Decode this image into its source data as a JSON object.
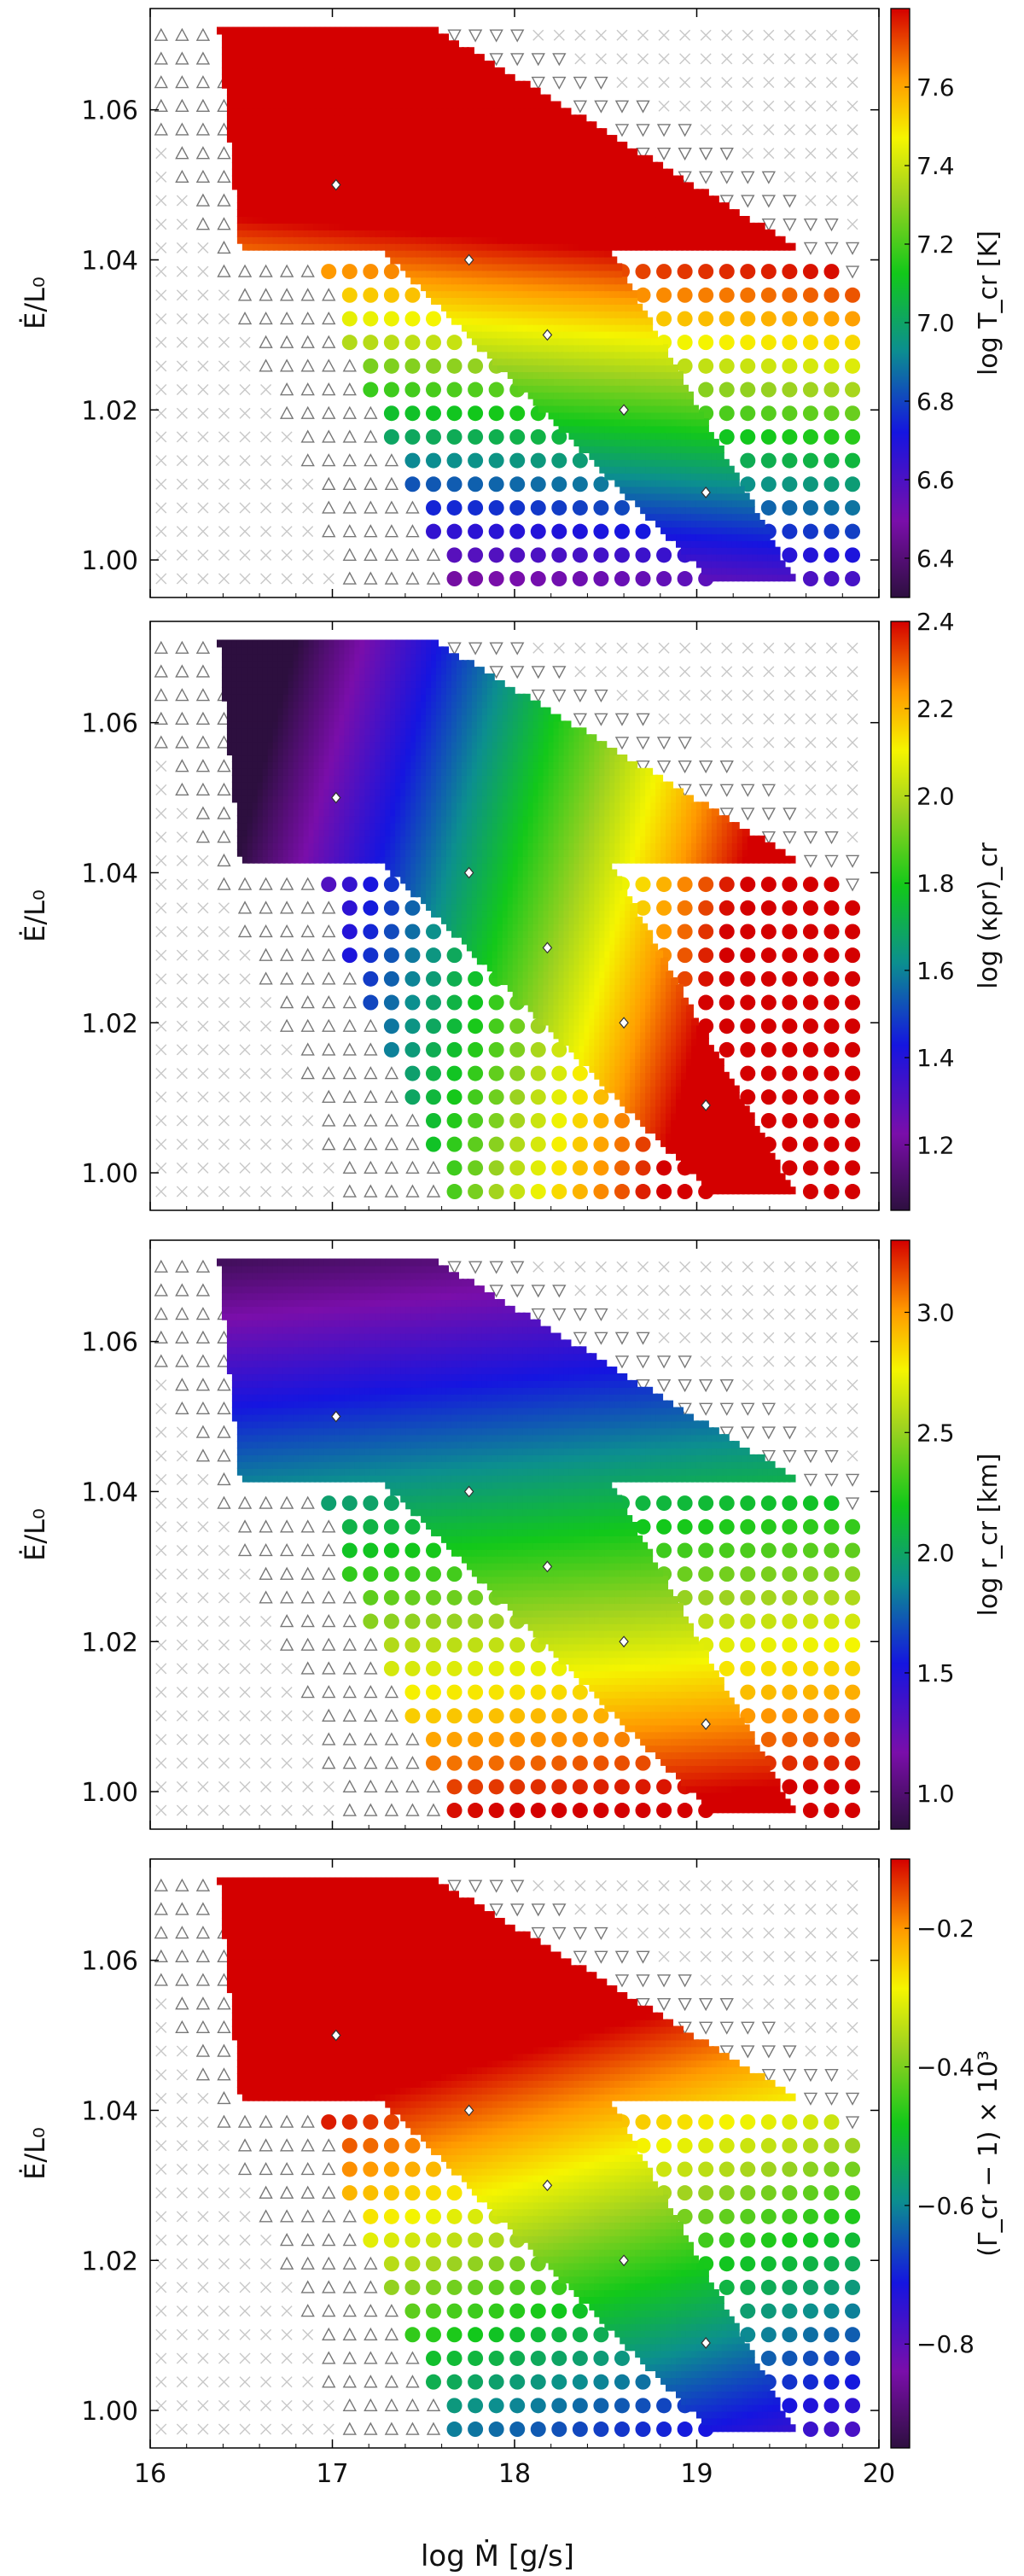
{
  "figure": {
    "shared_xlabel": "log Ṁ [g/s]",
    "shared_ylabel": "Ė/L₀"
  },
  "chart_data": [
    {
      "type": "scatter",
      "title": "",
      "xlabel": "log Ṁ [g/s]",
      "ylabel": "Ė/L₀",
      "xlim": [
        16,
        20
      ],
      "ylim": [
        0.995,
        1.0735
      ],
      "xticks": [
        "16",
        "17",
        "18",
        "19",
        "20"
      ],
      "yticks": [
        "1.00",
        "1.02",
        "1.04",
        "1.06"
      ],
      "colorbar": {
        "label": "log T_cr [K]",
        "range": [
          6.3,
          7.8
        ],
        "ticks": [
          "6.4",
          "6.6",
          "6.8",
          "7.0",
          "7.2",
          "7.4",
          "7.6"
        ],
        "colormap": "spectral-purple-to-red"
      },
      "markers": {
        "up_triangle": "grey open triangle (low Ṁ boundary)",
        "down_triangle": "grey open inverted triangle (high Ṁ boundary)",
        "cross": "light grey x (no solution)"
      },
      "highlighted_points": [
        [
          17.02,
          1.05
        ],
        [
          17.75,
          1.04
        ],
        [
          18.18,
          1.03
        ],
        [
          18.6,
          1.02
        ],
        [
          19.05,
          1.009
        ]
      ],
      "quantity": "temperature"
    },
    {
      "type": "scatter",
      "title": "",
      "xlabel": "log Ṁ [g/s]",
      "ylabel": "Ė/L₀",
      "xlim": [
        16,
        20
      ],
      "ylim": [
        0.995,
        1.0735
      ],
      "xticks": [
        "16",
        "17",
        "18",
        "19",
        "20"
      ],
      "yticks": [
        "1.00",
        "1.02",
        "1.04",
        "1.06"
      ],
      "colorbar": {
        "label": "log (κρr)_cr",
        "range": [
          1.05,
          2.4
        ],
        "ticks": [
          "1.2",
          "1.4",
          "1.6",
          "1.8",
          "2.0",
          "2.2",
          "2.4"
        ],
        "colormap": "spectral-purple-to-red"
      },
      "highlighted_points": [
        [
          17.02,
          1.05
        ],
        [
          17.75,
          1.04
        ],
        [
          18.18,
          1.03
        ],
        [
          18.6,
          1.02
        ],
        [
          19.05,
          1.009
        ]
      ],
      "quantity": "opticaldepth"
    },
    {
      "type": "scatter",
      "title": "",
      "xlabel": "log Ṁ [g/s]",
      "ylabel": "Ė/L₀",
      "xlim": [
        16,
        20
      ],
      "ylim": [
        0.995,
        1.0735
      ],
      "xticks": [
        "16",
        "17",
        "18",
        "19",
        "20"
      ],
      "yticks": [
        "1.00",
        "1.02",
        "1.04",
        "1.06"
      ],
      "colorbar": {
        "label": "log r_cr [km]",
        "range": [
          0.85,
          3.3
        ],
        "ticks": [
          "1.0",
          "1.5",
          "2.0",
          "2.5",
          "3.0"
        ],
        "colormap": "spectral-purple-to-red"
      },
      "highlighted_points": [
        [
          17.02,
          1.05
        ],
        [
          17.75,
          1.04
        ],
        [
          18.18,
          1.03
        ],
        [
          18.6,
          1.02
        ],
        [
          19.05,
          1.009
        ]
      ],
      "quantity": "radius"
    },
    {
      "type": "scatter",
      "title": "",
      "xlabel": "log Ṁ [g/s]",
      "ylabel": "Ė/L₀",
      "xlim": [
        16,
        20
      ],
      "ylim": [
        0.995,
        1.0735
      ],
      "xticks": [
        "16",
        "17",
        "18",
        "19",
        "20"
      ],
      "yticks": [
        "1.00",
        "1.02",
        "1.04",
        "1.06"
      ],
      "colorbar": {
        "label": "(Γ_cr − 1) × 10³",
        "range": [
          -0.95,
          -0.1
        ],
        "ticks": [
          "−0.8",
          "−0.6",
          "−0.4",
          "−0.2"
        ],
        "colormap": "spectral-purple-to-red"
      },
      "highlighted_points": [
        [
          17.02,
          1.05
        ],
        [
          17.75,
          1.04
        ],
        [
          18.18,
          1.03
        ],
        [
          18.6,
          1.02
        ],
        [
          19.05,
          1.009
        ]
      ],
      "quantity": "gamma"
    }
  ]
}
